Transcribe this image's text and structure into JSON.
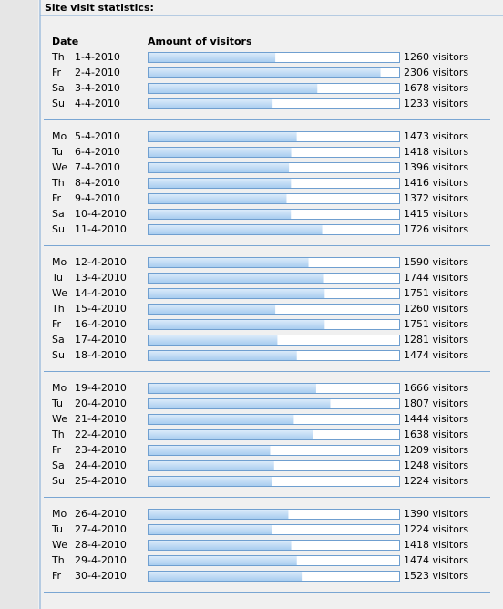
{
  "title": "Site visit statistics:",
  "headers": {
    "date": "Date",
    "amount": "Amount of visitors"
  },
  "xlim": [
    0,
    2500
  ],
  "weeks": [
    {
      "rows": [
        {
          "day": "Th",
          "date": "1-4-2010",
          "visitors": 1260,
          "visitors_label": "1260 visitors"
        },
        {
          "day": "Fr",
          "date": "2-4-2010",
          "visitors": 2306,
          "visitors_label": "2306 visitors"
        },
        {
          "day": "Sa",
          "date": "3-4-2010",
          "visitors": 1678,
          "visitors_label": "1678 visitors"
        },
        {
          "day": "Su",
          "date": "4-4-2010",
          "visitors": 1233,
          "visitors_label": "1233 visitors"
        }
      ]
    },
    {
      "rows": [
        {
          "day": "Mo",
          "date": "5-4-2010",
          "visitors": 1473,
          "visitors_label": "1473 visitors"
        },
        {
          "day": "Tu",
          "date": "6-4-2010",
          "visitors": 1418,
          "visitors_label": "1418 visitors"
        },
        {
          "day": "We",
          "date": "7-4-2010",
          "visitors": 1396,
          "visitors_label": "1396 visitors"
        },
        {
          "day": "Th",
          "date": "8-4-2010",
          "visitors": 1416,
          "visitors_label": "1416 visitors"
        },
        {
          "day": "Fr",
          "date": "9-4-2010",
          "visitors": 1372,
          "visitors_label": "1372 visitors"
        },
        {
          "day": "Sa",
          "date": "10-4-2010",
          "visitors": 1415,
          "visitors_label": "1415 visitors"
        },
        {
          "day": "Su",
          "date": "11-4-2010",
          "visitors": 1726,
          "visitors_label": "1726 visitors"
        }
      ]
    },
    {
      "rows": [
        {
          "day": "Mo",
          "date": "12-4-2010",
          "visitors": 1590,
          "visitors_label": "1590 visitors"
        },
        {
          "day": "Tu",
          "date": "13-4-2010",
          "visitors": 1744,
          "visitors_label": "1744 visitors"
        },
        {
          "day": "We",
          "date": "14-4-2010",
          "visitors": 1751,
          "visitors_label": "1751 visitors"
        },
        {
          "day": "Th",
          "date": "15-4-2010",
          "visitors": 1260,
          "visitors_label": "1260 visitors"
        },
        {
          "day": "Fr",
          "date": "16-4-2010",
          "visitors": 1751,
          "visitors_label": "1751 visitors"
        },
        {
          "day": "Sa",
          "date": "17-4-2010",
          "visitors": 1281,
          "visitors_label": "1281 visitors"
        },
        {
          "day": "Su",
          "date": "18-4-2010",
          "visitors": 1474,
          "visitors_label": "1474 visitors"
        }
      ]
    },
    {
      "rows": [
        {
          "day": "Mo",
          "date": "19-4-2010",
          "visitors": 1666,
          "visitors_label": "1666 visitors"
        },
        {
          "day": "Tu",
          "date": "20-4-2010",
          "visitors": 1807,
          "visitors_label": "1807 visitors"
        },
        {
          "day": "We",
          "date": "21-4-2010",
          "visitors": 1444,
          "visitors_label": "1444 visitors"
        },
        {
          "day": "Th",
          "date": "22-4-2010",
          "visitors": 1638,
          "visitors_label": "1638 visitors"
        },
        {
          "day": "Fr",
          "date": "23-4-2010",
          "visitors": 1209,
          "visitors_label": "1209 visitors"
        },
        {
          "day": "Sa",
          "date": "24-4-2010",
          "visitors": 1248,
          "visitors_label": "1248 visitors"
        },
        {
          "day": "Su",
          "date": "25-4-2010",
          "visitors": 1224,
          "visitors_label": "1224 visitors"
        }
      ]
    },
    {
      "rows": [
        {
          "day": "Mo",
          "date": "26-4-2010",
          "visitors": 1390,
          "visitors_label": "1390 visitors"
        },
        {
          "day": "Tu",
          "date": "27-4-2010",
          "visitors": 1224,
          "visitors_label": "1224 visitors"
        },
        {
          "day": "We",
          "date": "28-4-2010",
          "visitors": 1418,
          "visitors_label": "1418 visitors"
        },
        {
          "day": "Th",
          "date": "29-4-2010",
          "visitors": 1474,
          "visitors_label": "1474 visitors"
        },
        {
          "day": "Fr",
          "date": "30-4-2010",
          "visitors": 1523,
          "visitors_label": "1523 visitors"
        }
      ]
    }
  ]
}
